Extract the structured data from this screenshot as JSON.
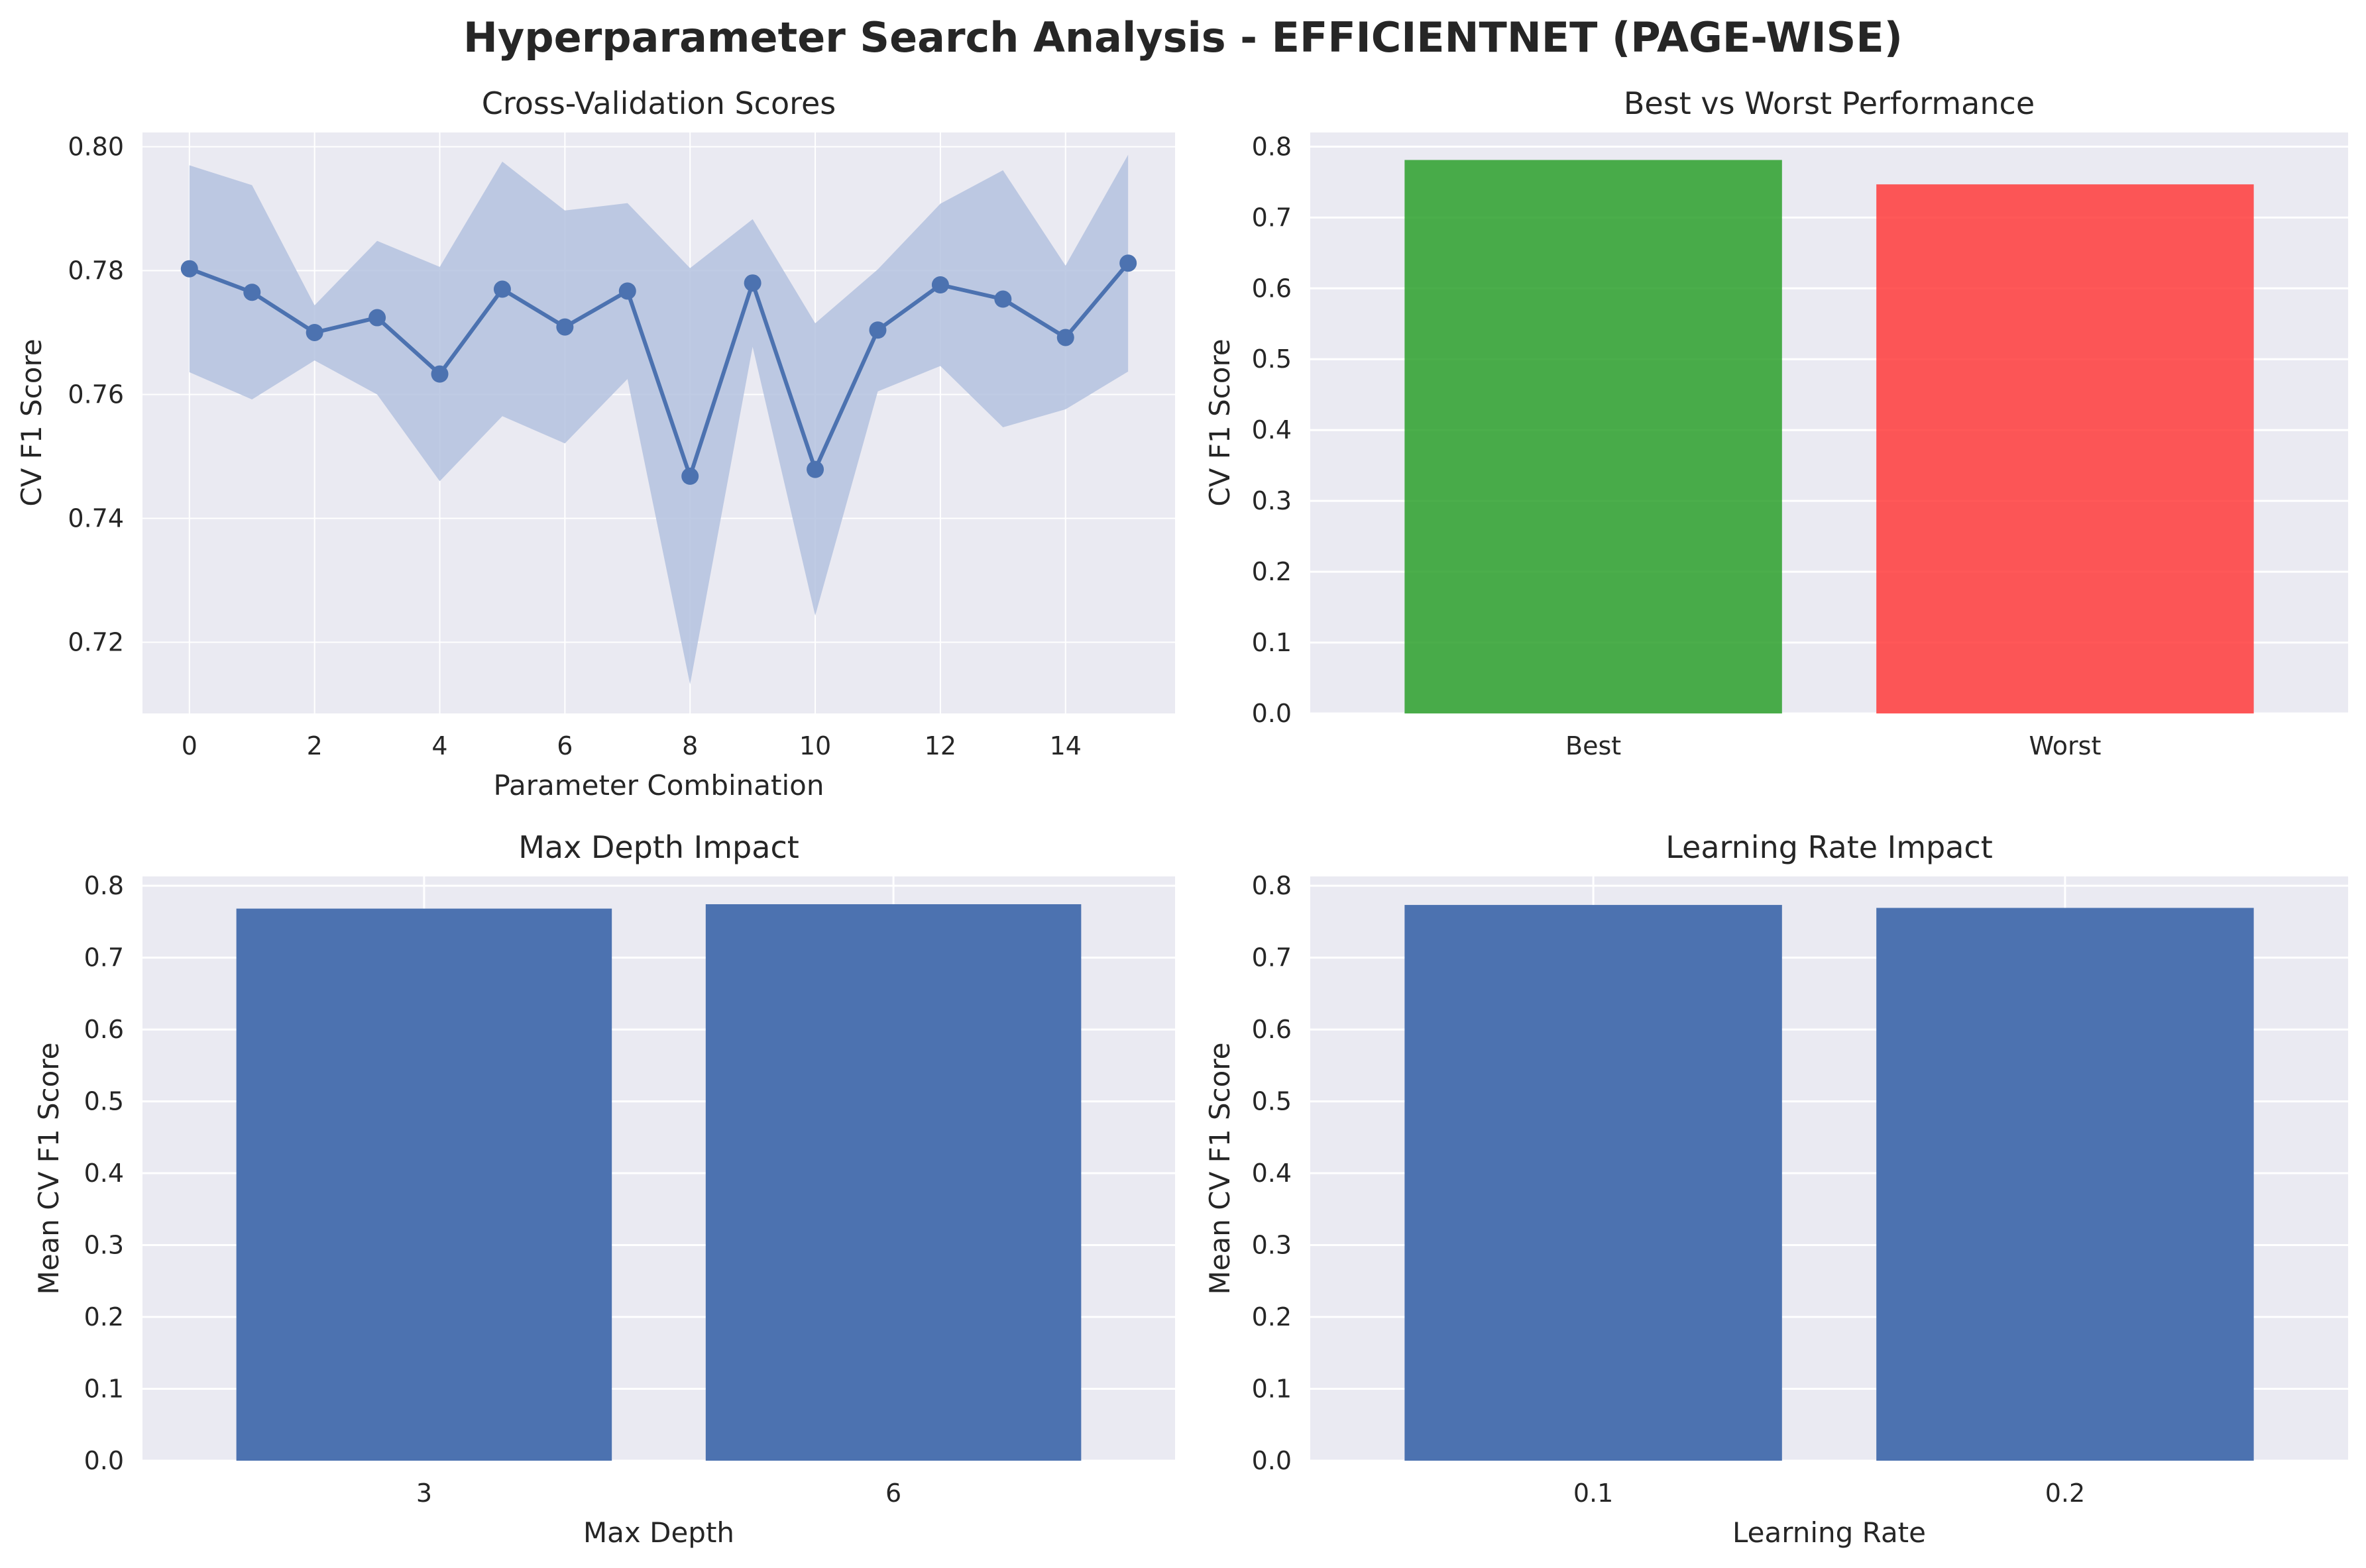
{
  "figure": {
    "title": "Hyperparameter Search Analysis - EFFICIENTNET (PAGE-WISE)"
  },
  "colors": {
    "background": "#EAEAF2",
    "grid": "#FFFFFF",
    "line": "#4C72B0",
    "band": "#B4C2DF",
    "best": "#2CA02C",
    "worst": "#FF3B3B",
    "bar": "#4C72B0"
  },
  "chart_data": [
    {
      "type": "line",
      "title": "Cross-Validation Scores",
      "xlabel": "Parameter Combination",
      "ylabel": "CV F1 Score",
      "x": [
        0,
        1,
        2,
        3,
        4,
        5,
        6,
        7,
        8,
        9,
        10,
        11,
        12,
        13,
        14,
        15
      ],
      "series": [
        {
          "values": [
            0.7803,
            0.7765,
            0.77,
            0.7724,
            0.7633,
            0.777,
            0.7709,
            0.7767,
            0.7468,
            0.778,
            0.7479,
            0.7704,
            0.7777,
            0.7754,
            0.7692,
            0.7812
          ],
          "upper": [
            0.797,
            0.7938,
            0.7744,
            0.7848,
            0.7806,
            0.7976,
            0.7897,
            0.7909,
            0.7804,
            0.7883,
            0.7715,
            0.7802,
            0.7908,
            0.7962,
            0.7808,
            0.7987
          ],
          "lower": [
            0.7636,
            0.7592,
            0.7655,
            0.76,
            0.746,
            0.7565,
            0.7521,
            0.7625,
            0.7132,
            0.7677,
            0.7243,
            0.7605,
            0.7646,
            0.7547,
            0.7576,
            0.7637
          ]
        }
      ],
      "xlim": [
        -0.75,
        15.75
      ],
      "ylim": [
        0.7085,
        0.8023
      ],
      "xticks": [
        0,
        2,
        4,
        6,
        8,
        10,
        12,
        14
      ],
      "yticks": [
        0.72,
        0.74,
        0.76,
        0.78,
        0.8
      ],
      "ytick_labels": [
        "0.72",
        "0.74",
        "0.76",
        "0.78",
        "0.80"
      ],
      "grid": true
    },
    {
      "type": "bar",
      "title": "Best vs Worst Performance",
      "xlabel": "",
      "ylabel": "CV F1 Score",
      "categories": [
        "Best",
        "Worst"
      ],
      "values": [
        0.7812,
        0.7468
      ],
      "bar_colors": [
        "#2CA02C",
        "#FF3B3B"
      ],
      "ylim": [
        0,
        0.82
      ],
      "yticks": [
        0,
        0.1,
        0.2,
        0.3,
        0.4,
        0.5,
        0.6,
        0.7,
        0.8
      ],
      "ytick_labels": [
        "0.0",
        "0.1",
        "0.2",
        "0.3",
        "0.4",
        "0.5",
        "0.6",
        "0.7",
        "0.8"
      ],
      "grid": true
    },
    {
      "type": "bar",
      "title": "Max Depth Impact",
      "xlabel": "Max Depth",
      "ylabel": "Mean CV F1 Score",
      "categories": [
        "3",
        "6"
      ],
      "values": [
        0.7682,
        0.7743
      ],
      "ylim": [
        0,
        0.813
      ],
      "yticks": [
        0,
        0.1,
        0.2,
        0.3,
        0.4,
        0.5,
        0.6,
        0.7,
        0.8
      ],
      "ytick_labels": [
        "0.0",
        "0.1",
        "0.2",
        "0.3",
        "0.4",
        "0.5",
        "0.6",
        "0.7",
        "0.8"
      ],
      "grid": true
    },
    {
      "type": "bar",
      "title": "Learning Rate Impact",
      "xlabel": "Learning Rate",
      "ylabel": "Mean CV F1 Score",
      "categories": [
        "0.1",
        "0.2"
      ],
      "values": [
        0.7733,
        0.7692
      ],
      "ylim": [
        0,
        0.813
      ],
      "yticks": [
        0,
        0.1,
        0.2,
        0.3,
        0.4,
        0.5,
        0.6,
        0.7,
        0.8
      ],
      "ytick_labels": [
        "0.0",
        "0.1",
        "0.2",
        "0.3",
        "0.4",
        "0.5",
        "0.6",
        "0.7",
        "0.8"
      ],
      "grid": true
    }
  ]
}
